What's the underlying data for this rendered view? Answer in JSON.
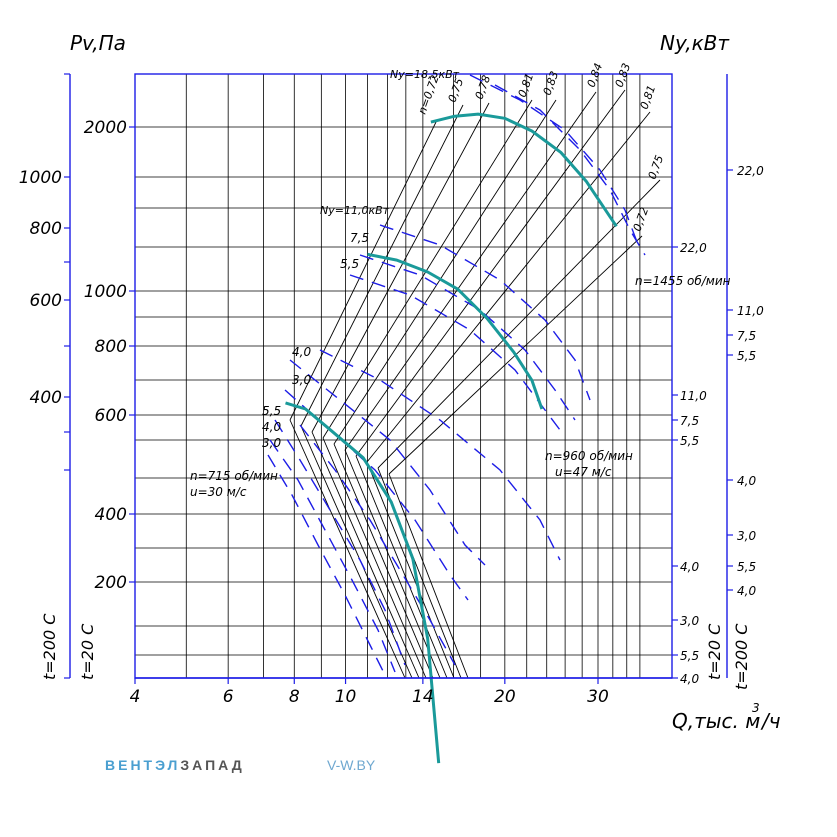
{
  "chart_data": {
    "type": "line",
    "title": "",
    "ylabel_pressure": "Pv,Па",
    "ylabel_power": "Ny,кВт",
    "xlabel": "Q,тыс. м",
    "xlabel_sup": "3",
    "xlabel_tail": "/ч",
    "temp_axis_labels": [
      "t=200 С",
      "t=20 С",
      "t=20 С",
      "t=200 С"
    ],
    "x_ticks": [
      "4",
      "6",
      "8",
      "10",
      "14",
      "20",
      "30"
    ],
    "pv_ticks_inner": [
      "2000",
      "1000",
      "800",
      "600",
      "400",
      "200"
    ],
    "pv_ticks_outer": [
      "1000",
      "800",
      "600",
      "400"
    ],
    "ny_ticks_outer": [
      "22,0",
      "11,0",
      "7,5",
      "5,5",
      "4,0",
      "3,0",
      "5,5",
      "4,0"
    ],
    "ny_ticks_inner": [
      "22,0",
      "11,0",
      "7,5",
      "5,5",
      "4,0",
      "3,0",
      "5,5",
      "4,0"
    ],
    "efficiency_labels": [
      "n=0,72",
      "0,75",
      "0,78",
      "0,81",
      "0,83",
      "0,84",
      "0,83",
      "0,81",
      "0,75",
      "0,72"
    ],
    "series": [
      {
        "name": "n=715 об/мин",
        "sub": "u=30 м/с",
        "points": [
          [
            7.7,
            495
          ],
          [
            8.4,
            480
          ],
          [
            9.4,
            430
          ],
          [
            10.8,
            375
          ],
          [
            12.2,
            300
          ],
          [
            13.4,
            225
          ],
          [
            14.3,
            150
          ],
          [
            15.0,
            80
          ]
        ]
      },
      {
        "name": "n=960 об/мин",
        "sub": "u=47 м/с",
        "points": [
          [
            11.0,
            1050
          ],
          [
            12.5,
            1020
          ],
          [
            14.3,
            960
          ],
          [
            16.3,
            880
          ],
          [
            18.5,
            760
          ],
          [
            20.8,
            640
          ],
          [
            22.5,
            555
          ],
          [
            23.5,
            480
          ]
        ]
      },
      {
        "name": "n=1455 об/мин",
        "sub": "",
        "points": [
          [
            14.5,
            2050
          ],
          [
            16.0,
            2110
          ],
          [
            17.8,
            2135
          ],
          [
            20.0,
            2090
          ],
          [
            22.5,
            1960
          ],
          [
            25.5,
            1760
          ],
          [
            28.5,
            1520
          ],
          [
            32.5,
            1210
          ]
        ]
      }
    ],
    "power_labels_715": [
      "5,5",
      "4,0",
      "3,0"
    ],
    "power_labels_960": [
      "4,0",
      "3,0"
    ],
    "power_labels_1455": [
      "Ny=18,5кВт",
      "Ny=11,0кВт",
      "7,5",
      "5,5"
    ],
    "power_leader_labels": [
      "22,0",
      "11,0",
      "7,5",
      "5,5",
      "4,0",
      "3,0",
      "5,5",
      "4,0"
    ],
    "grid": true,
    "colors": {
      "axis": "#1d1de6",
      "grid": "#000000",
      "curve": "#1a9a9a",
      "dash": "#1d1de6"
    }
  },
  "brand": {
    "part1": "ВЕНТЭЛ",
    "part2": "ЗАПАД",
    "site": "V-W.BY"
  }
}
